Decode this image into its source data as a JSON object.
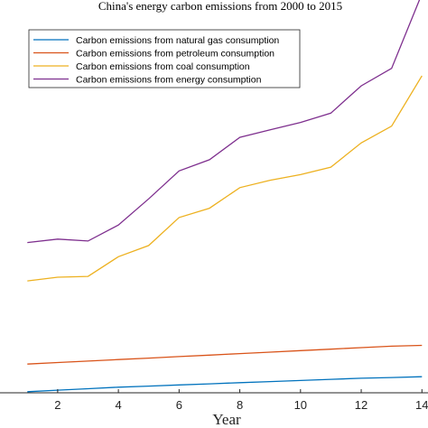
{
  "chart_data": {
    "type": "line",
    "title": "China's energy carbon emissions from 2000 to 2015",
    "xlabel": "Year",
    "ylabel": "",
    "xlim": [
      0.1,
      14.2
    ],
    "ylim": [
      0,
      1
    ],
    "xticks": [
      2,
      4,
      6,
      8,
      10,
      12,
      14
    ],
    "xtick_labels": [
      "2",
      "4",
      "6",
      "8",
      "10",
      "12",
      "14"
    ],
    "grid": false,
    "legend_position": "top-left",
    "x": [
      1,
      2,
      3,
      4,
      5,
      6,
      7,
      8,
      9,
      10,
      11,
      12,
      13,
      14
    ],
    "series": [
      {
        "name": "Carbon emissions from natural gas consumption",
        "color": "#0072BD",
        "values": [
          0.003,
          0.007,
          0.011,
          0.015,
          0.018,
          0.021,
          0.024,
          0.027,
          0.03,
          0.033,
          0.036,
          0.039,
          0.041,
          0.043
        ]
      },
      {
        "name": "Carbon emissions from petroleum consumption",
        "color": "#D95319",
        "values": [
          0.077,
          0.081,
          0.085,
          0.089,
          0.093,
          0.097,
          0.101,
          0.105,
          0.109,
          0.113,
          0.117,
          0.121,
          0.125,
          0.127
        ]
      },
      {
        "name": "Carbon emissions from coal consumption",
        "color": "#EDB120",
        "values": [
          0.3,
          0.31,
          0.312,
          0.365,
          0.395,
          0.47,
          0.495,
          0.55,
          0.57,
          0.585,
          0.605,
          0.67,
          0.715,
          0.85
        ]
      },
      {
        "name": "Carbon emissions from energy consumption",
        "color": "#7E2F8E",
        "values": [
          0.403,
          0.412,
          0.407,
          0.45,
          0.52,
          0.595,
          0.625,
          0.685,
          0.705,
          0.725,
          0.75,
          0.823,
          0.87,
          1.07
        ]
      }
    ]
  }
}
